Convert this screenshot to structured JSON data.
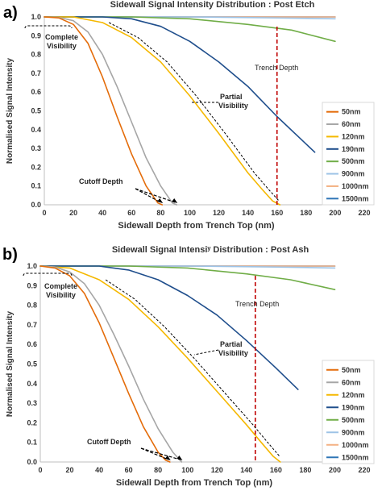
{
  "chart_data": [
    {
      "panel_label": "a)",
      "type": "line",
      "title": "Sidewall Signal Intensity Distribution : Post Etch",
      "xlabel": "Sidewall Depth from Trench Top (nm)",
      "ylabel": "Normalised Signal Intensity",
      "xlim": [
        0,
        220
      ],
      "ylim": [
        0,
        1.0
      ],
      "xticks": [
        "0",
        "20",
        "40",
        "60",
        "80",
        "100",
        "120",
        "140",
        "160",
        "180",
        "200",
        "220"
      ],
      "yticks": [
        "0.0",
        "0.1",
        "0.2",
        "0.3",
        "0.4",
        "0.5",
        "0.6",
        "0.7",
        "0.8",
        "0.9",
        "1.0"
      ],
      "legend_position": "right",
      "grid": false,
      "trench_depth": {
        "label": "Trench Depth",
        "x": 160,
        "color": "#c00000"
      },
      "annotations": {
        "complete_visibility": "Complete\nVisibility",
        "partial_visibility": "Partial\nVisibility",
        "cutoff_depth": "Cutoff Depth"
      },
      "series": [
        {
          "name": "50nm",
          "color": "#e46c0a",
          "x": [
            0,
            10,
            20,
            30,
            40,
            50,
            60,
            70,
            78,
            81
          ],
          "y": [
            1.0,
            0.995,
            0.96,
            0.86,
            0.68,
            0.47,
            0.27,
            0.1,
            0.01,
            0.0
          ]
        },
        {
          "name": "60nm",
          "color": "#a6a6a6",
          "x": [
            0,
            10,
            20,
            30,
            40,
            50,
            60,
            70,
            80,
            88,
            91
          ],
          "y": [
            1.0,
            0.998,
            0.98,
            0.92,
            0.8,
            0.63,
            0.44,
            0.25,
            0.1,
            0.01,
            0.0
          ]
        },
        {
          "name": "120nm",
          "color": "#f5b800",
          "x": [
            0,
            20,
            40,
            60,
            80,
            100,
            120,
            140,
            150,
            157,
            162
          ],
          "y": [
            1.0,
            1.0,
            0.97,
            0.89,
            0.76,
            0.58,
            0.38,
            0.17,
            0.08,
            0.02,
            0.0
          ]
        },
        {
          "name": "190nm",
          "color": "#1f4e8c",
          "x": [
            0,
            40,
            60,
            80,
            100,
            120,
            140,
            160,
            186
          ],
          "y": [
            1.0,
            1.0,
            0.99,
            0.95,
            0.87,
            0.76,
            0.63,
            0.47,
            0.28
          ]
        },
        {
          "name": "500nm",
          "color": "#70ad47",
          "x": [
            0,
            60,
            100,
            140,
            170,
            200
          ],
          "y": [
            1.0,
            1.0,
            0.99,
            0.96,
            0.93,
            0.87
          ]
        },
        {
          "name": "900nm",
          "color": "#9dc3e6",
          "x": [
            0,
            100,
            160,
            200
          ],
          "y": [
            1.0,
            1.0,
            0.995,
            0.99
          ]
        },
        {
          "name": "1000nm",
          "color": "#f4b183",
          "x": [
            0,
            200
          ],
          "y": [
            1.0,
            1.0
          ]
        },
        {
          "name": "1500nm",
          "color": "#2e75b6",
          "x": [
            0,
            200
          ],
          "y": [
            1.0,
            1.0
          ]
        }
      ]
    },
    {
      "panel_label": "b)",
      "type": "line",
      "title": "Sidewall Signal Intensiʸ Distribution : Post Ash",
      "xlabel": "Sidewall Depth from Trench Top (nm)",
      "ylabel": "Normalised Signal Intensity",
      "xlim": [
        0,
        220
      ],
      "ylim": [
        0,
        1.0
      ],
      "xticks": [
        "0",
        "20",
        "40",
        "60",
        "80",
        "100",
        "120",
        "140",
        "160",
        "180",
        "200",
        "220"
      ],
      "yticks": [
        "0.0",
        "0.1",
        "0.2",
        "0.3",
        "0.4",
        "0.5",
        "0.6",
        "0.7",
        "0.8",
        "0.9",
        "1.0"
      ],
      "legend_position": "right",
      "grid": false,
      "trench_depth": {
        "label": "Trench Depth",
        "x": 146,
        "color": "#c00000"
      },
      "annotations": {
        "complete_visibility": "Complete\nVisibility",
        "partial_visibility": "Partial\nVisibility",
        "cutoff_depth": "Cutoff Depth"
      },
      "series": [
        {
          "name": "50nm",
          "color": "#e46c0a",
          "x": [
            0,
            10,
            20,
            30,
            40,
            50,
            60,
            70,
            80,
            85,
            88
          ],
          "y": [
            1.0,
            0.99,
            0.95,
            0.86,
            0.71,
            0.53,
            0.35,
            0.18,
            0.05,
            0.01,
            0.0
          ]
        },
        {
          "name": "60nm",
          "color": "#a6a6a6",
          "x": [
            0,
            10,
            20,
            30,
            40,
            50,
            60,
            70,
            80,
            90,
            96
          ],
          "y": [
            1.0,
            0.995,
            0.97,
            0.91,
            0.8,
            0.65,
            0.49,
            0.32,
            0.17,
            0.05,
            0.0
          ]
        },
        {
          "name": "120nm",
          "color": "#f5b800",
          "x": [
            0,
            20,
            40,
            60,
            80,
            100,
            120,
            140,
            150,
            158,
            163
          ],
          "y": [
            1.0,
            0.99,
            0.93,
            0.83,
            0.69,
            0.53,
            0.36,
            0.19,
            0.1,
            0.03,
            0.0
          ]
        },
        {
          "name": "190nm",
          "color": "#1f4e8c",
          "x": [
            0,
            40,
            60,
            80,
            100,
            120,
            140,
            160,
            175
          ],
          "y": [
            1.0,
            1.0,
            0.98,
            0.93,
            0.85,
            0.75,
            0.62,
            0.48,
            0.37
          ]
        },
        {
          "name": "500nm",
          "color": "#70ad47",
          "x": [
            0,
            60,
            100,
            140,
            170,
            200
          ],
          "y": [
            1.0,
            1.0,
            0.99,
            0.96,
            0.93,
            0.88
          ]
        },
        {
          "name": "900nm",
          "color": "#9dc3e6",
          "x": [
            0,
            100,
            160,
            200
          ],
          "y": [
            1.0,
            1.0,
            0.995,
            0.99
          ]
        },
        {
          "name": "1000nm",
          "color": "#f4b183",
          "x": [
            0,
            200
          ],
          "y": [
            1.0,
            1.0
          ]
        },
        {
          "name": "1500nm",
          "color": "#2e75b6",
          "x": [
            0,
            200
          ],
          "y": [
            1.0,
            1.0
          ]
        }
      ]
    }
  ]
}
